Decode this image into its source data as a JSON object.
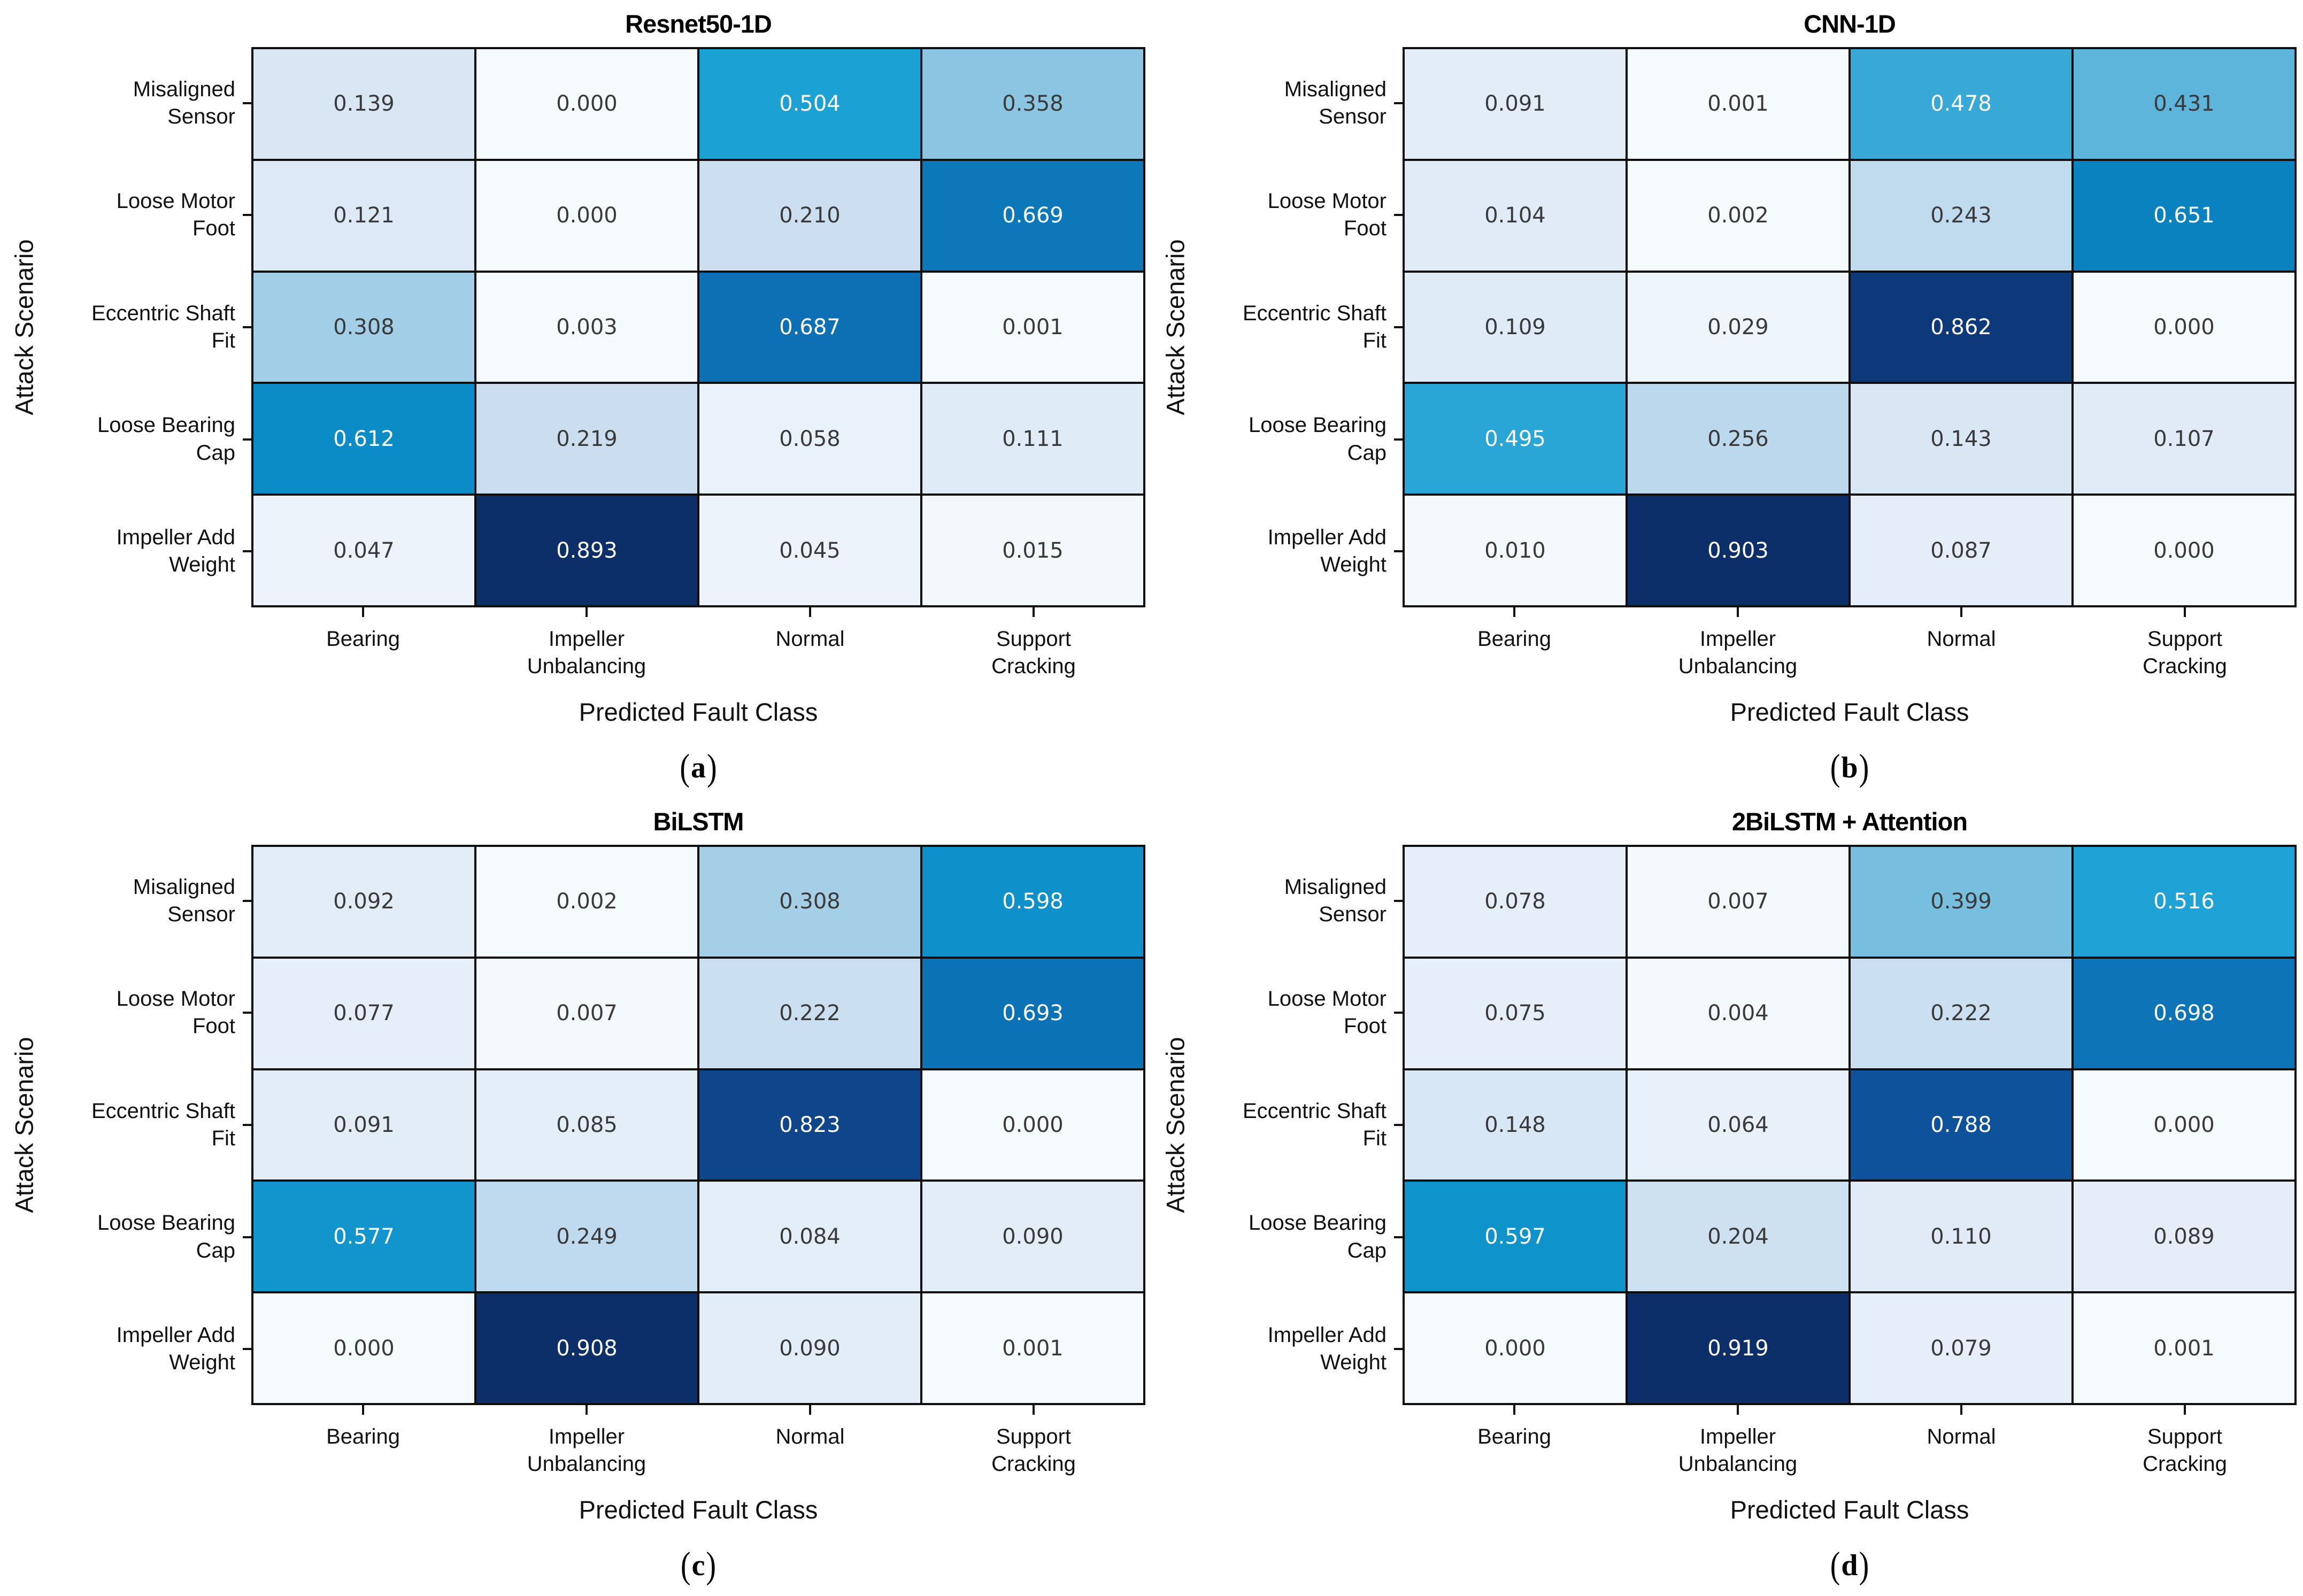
{
  "figure": {
    "background": "#ffffff",
    "grid_line_color": "#0d0d0d",
    "cell_text_dark": "#3a3a3a",
    "cell_text_light": "#ffffff",
    "light_text_threshold": 0.5,
    "colormap_stops": [
      [
        0.0,
        "#f5fafd"
      ],
      [
        0.1,
        "#e3edf8"
      ],
      [
        0.25,
        "#c9def0"
      ],
      [
        0.4,
        "#8cc5e1"
      ],
      [
        0.5,
        "#4fb0da"
      ],
      [
        0.57,
        "#18a0d4"
      ],
      [
        0.7,
        "#0a8ac5"
      ],
      [
        0.78,
        "#0d6cb2"
      ],
      [
        0.88,
        "#0e4b95"
      ],
      [
        1.0,
        "#0c2e69"
      ]
    ]
  },
  "chart_data": [
    {
      "type": "heatmap",
      "title": "Resnet50-1D",
      "caption": {
        "open": "(",
        "letter": "a",
        "close": ")"
      },
      "xlabel": "Predicted Fault Class",
      "ylabel": "Attack Scenario",
      "rows": [
        "Misaligned\nSensor",
        "Loose Motor\nFoot",
        "Eccentric Shaft\nFit",
        "Loose Bearing\nCap",
        "Impeller Add\nWeight"
      ],
      "cols": [
        "Bearing",
        "Impeller\nUnbalancing",
        "Normal",
        "Support\nCracking"
      ],
      "values": [
        [
          0.139,
          0.0,
          0.504,
          0.358
        ],
        [
          0.121,
          0.0,
          0.21,
          0.669
        ],
        [
          0.308,
          0.003,
          0.687,
          0.001
        ],
        [
          0.612,
          0.219,
          0.058,
          0.111
        ],
        [
          0.047,
          0.893,
          0.045,
          0.015
        ]
      ],
      "value_decimals": 3,
      "normalization": "matrix-max",
      "colormap": "Blues"
    },
    {
      "type": "heatmap",
      "title": "CNN-1D",
      "caption": {
        "open": "(",
        "letter": "b",
        "close": ")"
      },
      "xlabel": "Predicted Fault Class",
      "ylabel": "Attack Scenario",
      "rows": [
        "Misaligned\nSensor",
        "Loose Motor\nFoot",
        "Eccentric Shaft\nFit",
        "Loose Bearing\nCap",
        "Impeller Add\nWeight"
      ],
      "cols": [
        "Bearing",
        "Impeller\nUnbalancing",
        "Normal",
        "Support\nCracking"
      ],
      "values": [
        [
          0.091,
          0.001,
          0.478,
          0.431
        ],
        [
          0.104,
          0.002,
          0.243,
          0.651
        ],
        [
          0.109,
          0.029,
          0.862,
          0.0
        ],
        [
          0.495,
          0.256,
          0.143,
          0.107
        ],
        [
          0.01,
          0.903,
          0.087,
          0.0
        ]
      ],
      "value_decimals": 3,
      "normalization": "matrix-max",
      "colormap": "Blues"
    },
    {
      "type": "heatmap",
      "title": "BiLSTM",
      "caption": {
        "open": "(",
        "letter": "c",
        "close": ")"
      },
      "xlabel": "Predicted Fault Class",
      "ylabel": "Attack Scenario",
      "rows": [
        "Misaligned\nSensor",
        "Loose Motor\nFoot",
        "Eccentric Shaft\nFit",
        "Loose Bearing\nCap",
        "Impeller Add\nWeight"
      ],
      "cols": [
        "Bearing",
        "Impeller\nUnbalancing",
        "Normal",
        "Support\nCracking"
      ],
      "values": [
        [
          0.092,
          0.002,
          0.308,
          0.598
        ],
        [
          0.077,
          0.007,
          0.222,
          0.693
        ],
        [
          0.091,
          0.085,
          0.823,
          0.0
        ],
        [
          0.577,
          0.249,
          0.084,
          0.09
        ],
        [
          0.0,
          0.908,
          0.09,
          0.001
        ]
      ],
      "value_decimals": 3,
      "normalization": "matrix-max",
      "colormap": "Blues"
    },
    {
      "type": "heatmap",
      "title": "2BiLSTM + Attention",
      "caption": {
        "open": "(",
        "letter": "d",
        "close": ")"
      },
      "xlabel": "Predicted Fault Class",
      "ylabel": "Attack Scenario",
      "rows": [
        "Misaligned\nSensor",
        "Loose Motor\nFoot",
        "Eccentric Shaft\nFit",
        "Loose Bearing\nCap",
        "Impeller Add\nWeight"
      ],
      "cols": [
        "Bearing",
        "Impeller\nUnbalancing",
        "Normal",
        "Support\nCracking"
      ],
      "values": [
        [
          0.078,
          0.007,
          0.399,
          0.516
        ],
        [
          0.075,
          0.004,
          0.222,
          0.698
        ],
        [
          0.148,
          0.064,
          0.788,
          0.0
        ],
        [
          0.597,
          0.204,
          0.11,
          0.089
        ],
        [
          0.0,
          0.919,
          0.079,
          0.001
        ]
      ],
      "value_decimals": 3,
      "normalization": "matrix-max",
      "colormap": "Blues"
    }
  ]
}
